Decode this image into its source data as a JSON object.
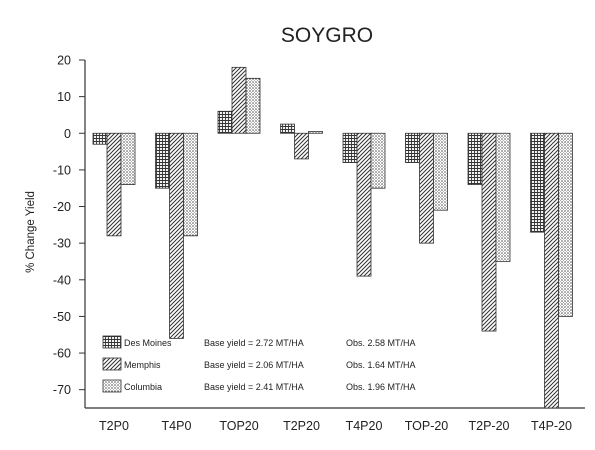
{
  "chart_data": {
    "type": "bar",
    "title": "SOYGRO",
    "xlabel": "",
    "ylabel": "% Change Yield",
    "ylim": [
      -75,
      20
    ],
    "yticks": [
      20,
      10,
      0,
      -10,
      -20,
      -30,
      -40,
      -50,
      -60,
      -70
    ],
    "grid": false,
    "legend_position": "bottom-left",
    "categories": [
      "T2P0",
      "T4P0",
      "TOP20",
      "T2P20",
      "T4P20",
      "TOP-20",
      "T2P-20",
      "T4P-20"
    ],
    "series": [
      {
        "name": "Des Moines",
        "pattern": "grid",
        "base_yield": "Base yield = 2.72 MT/HA",
        "obs": "Obs. 2.58 MT/HA",
        "values": [
          -3,
          -15,
          6,
          2.5,
          -8,
          -8,
          -14,
          -27
        ]
      },
      {
        "name": "Memphis",
        "pattern": "diagonal",
        "base_yield": "Base yield = 2.06 MT/HA",
        "obs": "Obs. 1.64 MT/HA",
        "values": [
          -28,
          -56,
          18,
          -7,
          -39,
          -30,
          -54,
          -75
        ]
      },
      {
        "name": "Columbia",
        "pattern": "dots",
        "base_yield": "Base yield = 2.41 MT/HA",
        "obs": "Obs. 1.96 MT/HA",
        "values": [
          -14,
          -28,
          15,
          0.5,
          -15,
          -21,
          -35,
          -50
        ]
      }
    ]
  }
}
